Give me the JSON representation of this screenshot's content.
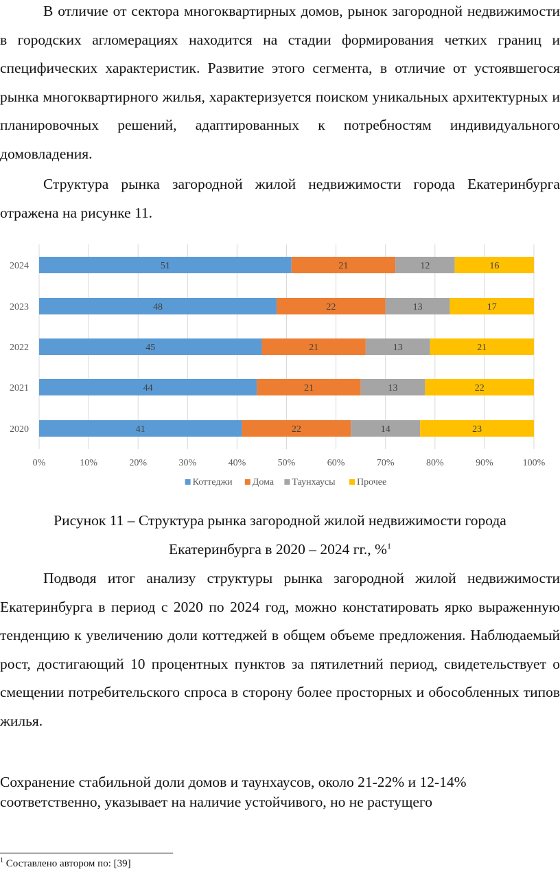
{
  "paragraphs": {
    "p1": "В отличие от сектора многоквартирных домов, рынок загородной недвижимости в городских агломерациях находится на стадии формирования четких границ и специфических характеристик. Развитие этого сегмента, в отличие от устоявшегося рынка многоквартирного жилья, характеризуется поиском уникальных архитектурных и планировочных решений, адаптированных к потребностям индивидуального домовладения.",
    "p2": "Структура рынка загородной жилой недвижимости города Екатеринбурга отражена на рисунке 11.",
    "p3": "Подводя итог анализу структуры рынка загородной жилой недвижимости Екатеринбурга в период с 2020 по 2024 год, можно констатировать ярко выраженную тенденцию к увеличению доли коттеджей в общем объеме предложения. Наблюдаемый рост, достигающий 10 процентных пунктов за пятилетний период, свидетельствует о смещении потребительского спроса в сторону более просторных и обособленных типов жилья.",
    "p4": "Сохранение стабильной доли домов и таунхаусов, около 21-22% и 12-14% соответственно, указывает на наличие устойчивого, но не растущего"
  },
  "caption": {
    "line1": "Рисунок 11 – Структура рынка загородной жилой недвижимости города",
    "line2": "Екатеринбурга в 2020 – 2024 гг., %",
    "footnote_ref": "1"
  },
  "footnote": {
    "mark": "1",
    "text": "Составлено автором по: [39]"
  },
  "chart_data": {
    "type": "bar",
    "orientation": "horizontal",
    "stacked": "percent",
    "categories": [
      "2024",
      "2023",
      "2022",
      "2021",
      "2020"
    ],
    "series": [
      {
        "name": "Коттеджи",
        "color": "#5B9BD5",
        "values": [
          51,
          48,
          45,
          44,
          41
        ]
      },
      {
        "name": "Дома",
        "color": "#ED7D31",
        "values": [
          21,
          22,
          21,
          21,
          22
        ]
      },
      {
        "name": "Таунхаусы",
        "color": "#A5A5A5",
        "values": [
          12,
          13,
          13,
          13,
          14
        ]
      },
      {
        "name": "Прочее",
        "color": "#FFC000",
        "values": [
          16,
          17,
          21,
          22,
          23
        ]
      }
    ],
    "xticks": [
      "0%",
      "10%",
      "20%",
      "30%",
      "40%",
      "50%",
      "60%",
      "70%",
      "80%",
      "90%",
      "100%"
    ],
    "xlim": [
      0,
      100
    ],
    "grid": true,
    "legend_position": "bottom",
    "title": "",
    "xlabel": "",
    "ylabel": ""
  }
}
